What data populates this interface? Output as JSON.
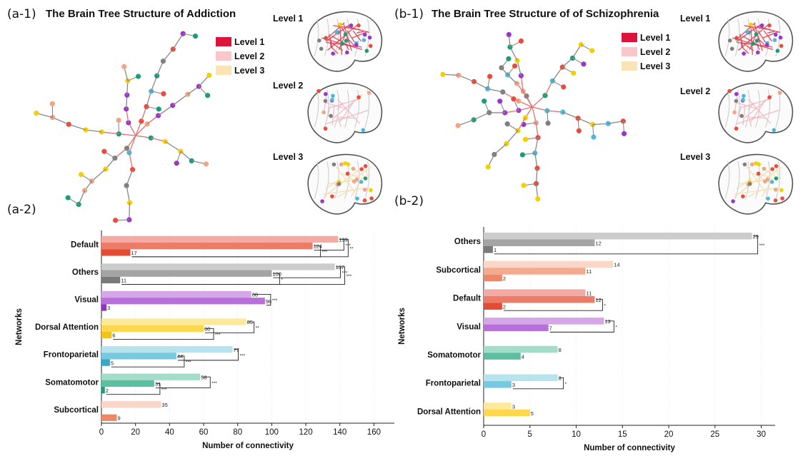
{
  "panels": {
    "a1_label": "(a-1)",
    "a1_title": "The Brain Tree Structure of Addiction",
    "b1_label": "(b-1)",
    "b1_title": "The Brain Tree Structure of of Schizophrenia",
    "a2_label": "(a-2)",
    "b2_label": "(b-2)",
    "brain_level_labels": [
      "Level 1",
      "Level 2",
      "Level 3"
    ],
    "legend": [
      {
        "label": "Level 1",
        "color": "#dc143c"
      },
      {
        "label": "Level 2",
        "color": "#f9c6cc"
      },
      {
        "label": "Level 3",
        "color": "#fbe3b6"
      }
    ]
  },
  "colors": {
    "network": {
      "Default": [
        "#f4aaa4",
        "#ec7b67",
        "#e44b33"
      ],
      "Others": [
        "#cccccc",
        "#a4a4a4",
        "#7a7a7a"
      ],
      "Visual": [
        "#d5a7e9",
        "#b86fdc",
        "#8e35bd"
      ],
      "Dorsal Attention": [
        "#fde99a",
        "#fdd84e",
        "#f1c40f"
      ],
      "Frontoparietal": [
        "#b7e3ef",
        "#76c9de",
        "#3aa7c8"
      ],
      "Somatomotor": [
        "#a3dcc9",
        "#5cbf9f",
        "#1f9b78"
      ],
      "Subcortical": [
        "#fad6c8",
        "#f5aa8e",
        "#ee8766"
      ]
    },
    "node_palette": [
      "#e84c3d",
      "#7f7f7f",
      "#9b36c9",
      "#f4d003",
      "#1f9b78",
      "#4fb8d6",
      "#f2a487"
    ]
  },
  "chart_data": [
    {
      "type": "bar",
      "orientation": "horizontal",
      "xlabel": "Number of connectivity",
      "ylabel": "Networks",
      "xlim": [
        0,
        172
      ],
      "xticks": [
        0,
        20,
        40,
        60,
        80,
        100,
        120,
        140,
        160
      ],
      "grid": "x",
      "categories": [
        "Default",
        "Others",
        "Visual",
        "Dorsal Attention",
        "Frontoparietal",
        "Somatomotor",
        "Subcortical"
      ],
      "series": [
        {
          "name": "Level 3",
          "values": [
            139,
            137,
            88,
            85,
            77,
            58,
            35
          ]
        },
        {
          "name": "Level 2",
          "values": [
            124,
            100,
            96,
            60,
            44,
            31,
            null
          ]
        },
        {
          "name": "Level 1",
          "values": [
            17,
            11,
            3,
            6,
            5,
            2,
            9
          ]
        }
      ],
      "significance": [
        {
          "category": "Default",
          "from": "Level 3",
          "to": "Level 2",
          "mark": "***"
        },
        {
          "category": "Default",
          "from": "Level 2",
          "to": "Level 1",
          "mark": "***"
        },
        {
          "category": "Default",
          "from": "Level 3",
          "to": "Level 1",
          "mark": "**"
        },
        {
          "category": "Others",
          "from": "Level 3",
          "to": "Level 2",
          "mark": "***"
        },
        {
          "category": "Others",
          "from": "Level 2",
          "to": "Level 1",
          "mark": "*"
        },
        {
          "category": "Others",
          "from": "Level 3",
          "to": "Level 1",
          "mark": "***"
        },
        {
          "category": "Visual",
          "from": "Level 3",
          "to": "Level 2",
          "mark": "***"
        },
        {
          "category": "Dorsal Attention",
          "from": "Level 3",
          "to": "Level 2",
          "mark": "**"
        },
        {
          "category": "Dorsal Attention",
          "from": "Level 2",
          "to": "Level 1",
          "mark": "***"
        },
        {
          "category": "Frontoparietal",
          "from": "Level 3",
          "to": "Level 2",
          "mark": "***"
        },
        {
          "category": "Frontoparietal",
          "from": "Level 2",
          "to": "Level 1",
          "mark": "***"
        },
        {
          "category": "Somatomotor",
          "from": "Level 3",
          "to": "Level 2",
          "mark": "***"
        },
        {
          "category": "Somatomotor",
          "from": "Level 2",
          "to": "Level 1",
          "mark": "***"
        }
      ]
    },
    {
      "type": "bar",
      "orientation": "horizontal",
      "xlabel": "Number of connectivity",
      "ylabel": "Networks",
      "xlim": [
        0,
        31.5
      ],
      "xticks": [
        0,
        5,
        10,
        15,
        20,
        25,
        30
      ],
      "grid": "x",
      "categories": [
        "Others",
        "Subcortical",
        "Default",
        "Visual",
        "Somatomotor",
        "Frontoparietal",
        "Dorsal Attention"
      ],
      "series": [
        {
          "name": "Level 3",
          "values": [
            29,
            14,
            11,
            13,
            8,
            8,
            3
          ]
        },
        {
          "name": "Level 2",
          "values": [
            12,
            11,
            12,
            7,
            4,
            3,
            5
          ]
        },
        {
          "name": "Level 1",
          "values": [
            1,
            2,
            2,
            null,
            null,
            null,
            null
          ]
        }
      ],
      "significance": [
        {
          "category": "Others",
          "from": "Level 3",
          "to": "Level 1",
          "mark": "***"
        },
        {
          "category": "Default",
          "from": "Level 2",
          "to": "Level 1",
          "mark": "*"
        },
        {
          "category": "Visual",
          "from": "Level 3",
          "to": "Level 2",
          "mark": "*"
        },
        {
          "category": "Frontoparietal",
          "from": "Level 3",
          "to": "Level 2",
          "mark": "*"
        }
      ]
    }
  ]
}
